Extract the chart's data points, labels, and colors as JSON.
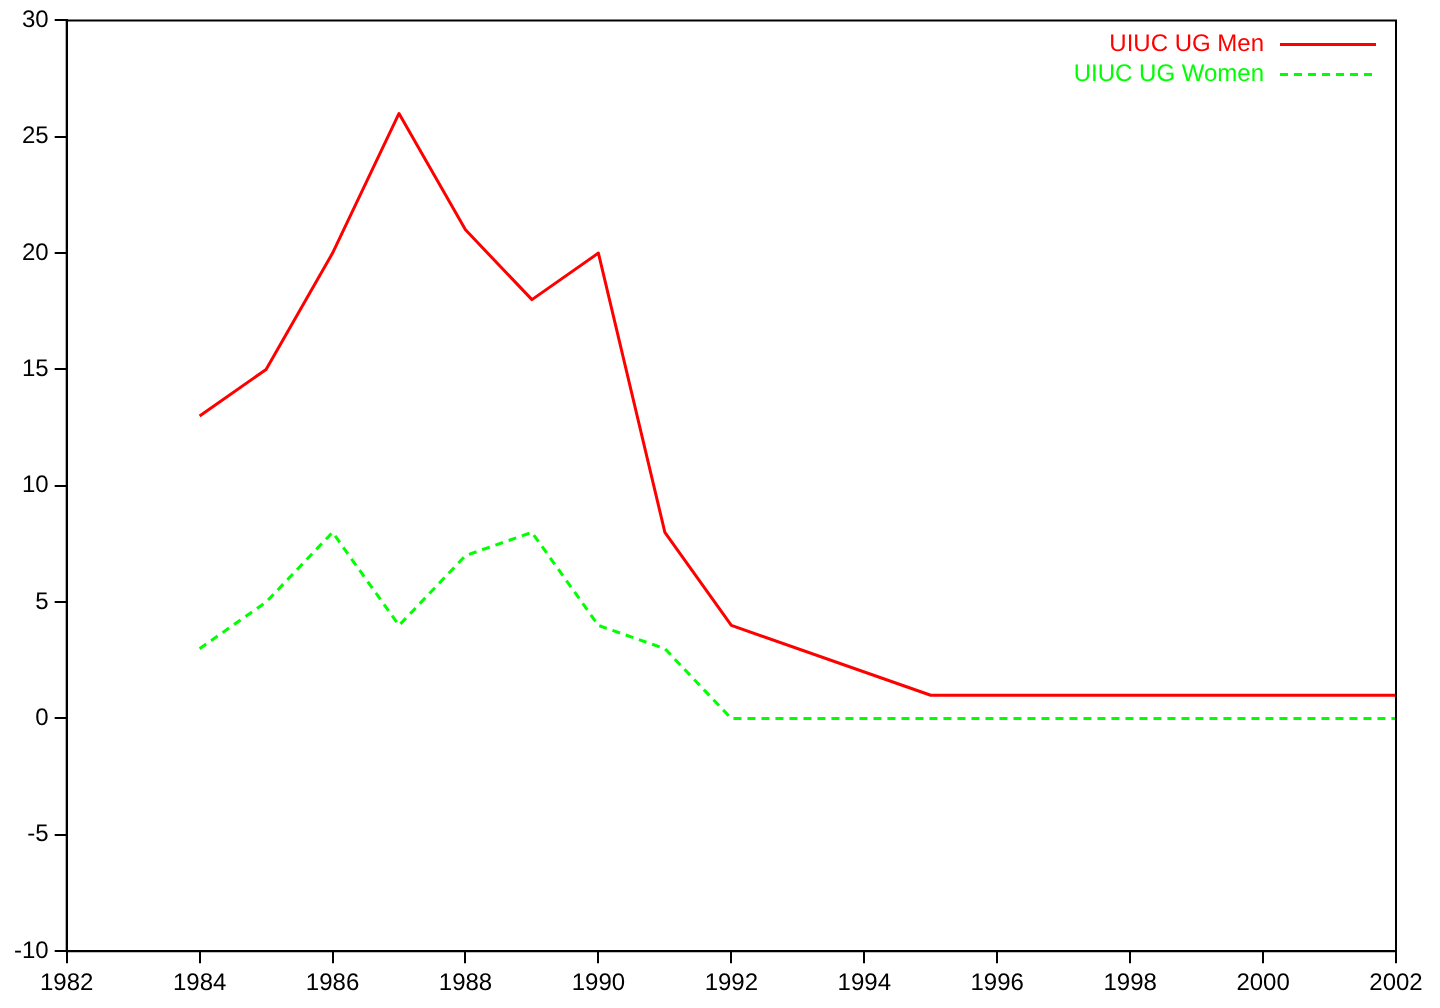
{
  "chart_data": {
    "type": "line",
    "legend": "top right",
    "grid": false,
    "marker": "none",
    "xlim": [
      1982,
      2002
    ],
    "xticks": [
      1982,
      1984,
      1986,
      1988,
      1990,
      1992,
      1994,
      1996,
      1998,
      2000,
      2002
    ],
    "ylim": [
      -10,
      30
    ],
    "yticks": [
      -10,
      -5,
      0,
      5,
      10,
      15,
      20,
      25,
      30
    ],
    "series": [
      {
        "name": "UIUC UG Men",
        "color": "#ff0000",
        "line_style": "solid",
        "x": [
          1984,
          1985,
          1986,
          1987,
          1988,
          1989,
          1990,
          1991,
          1992,
          1995,
          2002
        ],
        "values": [
          13,
          15,
          20,
          26,
          21,
          18,
          20,
          8,
          4,
          1,
          1
        ]
      },
      {
        "name": "UIUC UG Women",
        "color": "#00ff00",
        "line_style": "dashed",
        "x": [
          1984,
          1985,
          1986,
          1987,
          1988,
          1989,
          1990,
          1991,
          1992,
          2002
        ],
        "values": [
          3,
          5,
          8,
          4,
          7,
          8,
          4,
          3,
          0,
          0
        ]
      }
    ]
  }
}
